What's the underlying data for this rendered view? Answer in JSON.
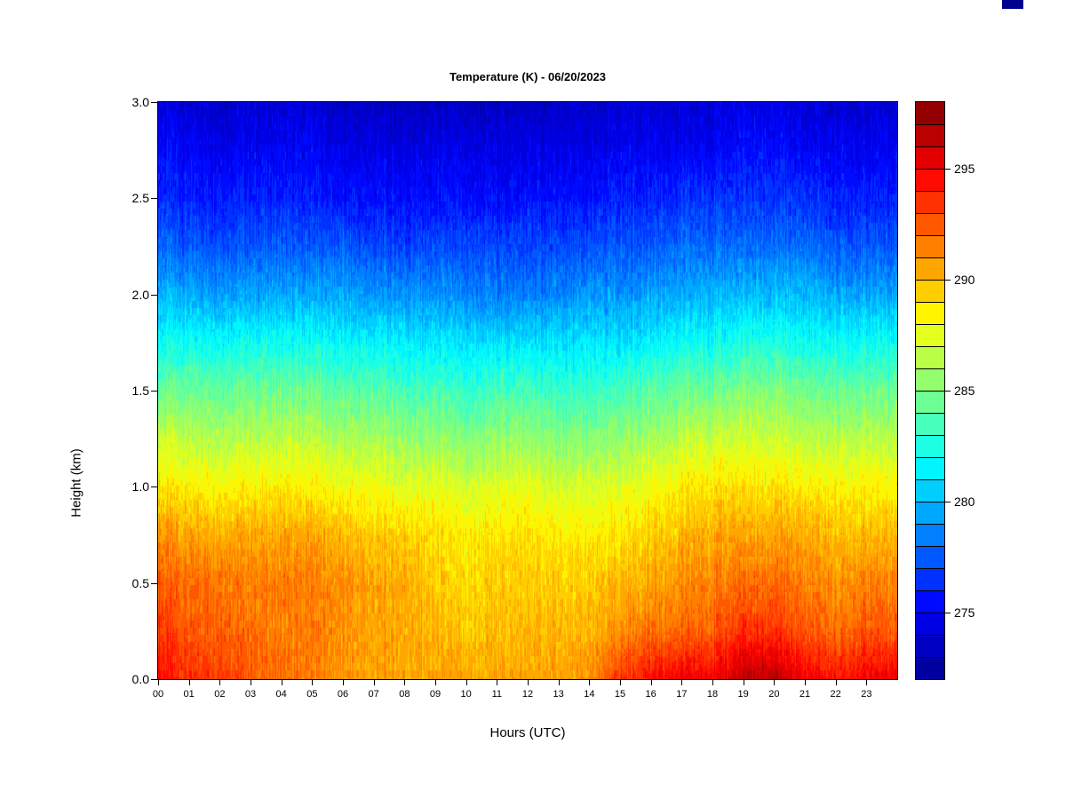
{
  "chart": {
    "title": "Temperature (K) - 06/20/2023",
    "xlabel": "Hours (UTC)",
    "ylabel": "Height (km)",
    "x_ticks": [
      "00",
      "01",
      "02",
      "03",
      "04",
      "05",
      "06",
      "07",
      "08",
      "09",
      "10",
      "11",
      "12",
      "13",
      "14",
      "15",
      "16",
      "17",
      "18",
      "19",
      "20",
      "21",
      "22",
      "23"
    ],
    "y_ticks": [
      "0.0",
      "0.5",
      "1.0",
      "1.5",
      "2.0",
      "2.5",
      "3.0"
    ],
    "colorbar_tick_labels": [
      "275",
      "280",
      "285",
      "290",
      "295"
    ]
  },
  "decorations": {
    "corner_mark_color": "#00008f"
  },
  "chart_data": {
    "type": "heatmap",
    "title": "Temperature (K) - 06/20/2023",
    "xlabel": "Hours (UTC)",
    "ylabel": "Height (km)",
    "x_hours": [
      0,
      1,
      2,
      3,
      4,
      5,
      6,
      7,
      8,
      9,
      10,
      11,
      12,
      13,
      14,
      15,
      16,
      17,
      18,
      19,
      20,
      21,
      22,
      23
    ],
    "y_heights_km": [
      0.0,
      0.25,
      0.5,
      0.75,
      1.0,
      1.25,
      1.5,
      1.75,
      2.0,
      2.25,
      2.5,
      2.75,
      3.0
    ],
    "y_range_km": [
      0.0,
      3.0
    ],
    "values_units": "K",
    "values_K_rows_by_height": [
      [
        294.5,
        293.5,
        293.5,
        292.5,
        292.0,
        291.5,
        291.0,
        290.5,
        290.5,
        290.5,
        290.5,
        290.5,
        290.5,
        290.5,
        291.0,
        293.5,
        294.5,
        295.0,
        295.0,
        296.5,
        296.5,
        295.0,
        294.5,
        295.0
      ],
      [
        293.5,
        292.5,
        292.5,
        292.0,
        291.5,
        291.5,
        291.0,
        290.5,
        290.5,
        290.0,
        289.5,
        290.0,
        290.0,
        290.0,
        290.0,
        291.0,
        292.0,
        292.0,
        292.5,
        293.5,
        293.5,
        292.5,
        292.0,
        292.5
      ],
      [
        292.5,
        292.0,
        292.0,
        291.5,
        291.5,
        291.5,
        291.0,
        290.5,
        290.5,
        289.5,
        289.0,
        289.5,
        289.5,
        289.5,
        289.5,
        290.0,
        290.5,
        291.0,
        291.5,
        292.0,
        292.0,
        291.5,
        291.0,
        291.5
      ],
      [
        291.0,
        290.5,
        290.5,
        290.5,
        290.5,
        290.5,
        290.0,
        289.5,
        289.5,
        289.0,
        288.5,
        289.0,
        289.0,
        288.5,
        288.5,
        289.0,
        289.5,
        290.0,
        290.5,
        290.5,
        290.5,
        290.5,
        290.0,
        290.0
      ],
      [
        289.0,
        288.5,
        288.5,
        288.5,
        288.5,
        288.5,
        288.0,
        288.0,
        287.5,
        287.5,
        287.0,
        287.5,
        287.5,
        287.0,
        287.0,
        287.5,
        288.0,
        288.5,
        289.0,
        289.0,
        289.0,
        288.5,
        288.5,
        288.5
      ],
      [
        287.0,
        286.5,
        286.5,
        286.5,
        286.5,
        286.5,
        286.0,
        286.0,
        285.5,
        285.5,
        285.0,
        285.5,
        285.5,
        285.0,
        285.0,
        285.5,
        286.0,
        286.5,
        287.0,
        287.0,
        287.0,
        286.5,
        286.5,
        286.5
      ],
      [
        284.5,
        284.5,
        284.5,
        284.5,
        284.5,
        284.5,
        284.0,
        284.0,
        283.5,
        283.5,
        283.0,
        283.5,
        283.5,
        283.0,
        283.0,
        283.5,
        284.0,
        284.5,
        284.5,
        285.0,
        285.0,
        284.5,
        284.5,
        284.5
      ],
      [
        282.0,
        282.0,
        282.0,
        282.0,
        282.0,
        282.0,
        281.5,
        281.5,
        281.5,
        281.0,
        281.0,
        281.0,
        281.0,
        281.0,
        281.0,
        281.0,
        281.5,
        282.0,
        282.0,
        282.5,
        282.5,
        282.0,
        282.0,
        282.0
      ],
      [
        280.0,
        279.5,
        279.5,
        279.5,
        279.5,
        279.5,
        279.5,
        279.0,
        279.0,
        279.0,
        278.5,
        278.5,
        278.5,
        278.5,
        279.0,
        279.0,
        279.5,
        279.5,
        280.0,
        280.0,
        280.0,
        280.0,
        279.5,
        279.5
      ],
      [
        278.0,
        277.5,
        277.5,
        277.5,
        277.5,
        277.5,
        277.5,
        277.0,
        277.0,
        277.0,
        277.0,
        277.0,
        277.0,
        277.0,
        277.0,
        277.5,
        277.5,
        278.0,
        278.0,
        278.0,
        278.0,
        278.0,
        277.5,
        277.5
      ],
      [
        276.5,
        276.0,
        276.0,
        276.0,
        276.0,
        276.0,
        275.5,
        275.5,
        275.5,
        275.5,
        275.5,
        275.5,
        275.5,
        275.5,
        275.5,
        276.0,
        276.0,
        276.5,
        276.5,
        276.5,
        276.5,
        276.5,
        276.0,
        276.0
      ],
      [
        275.5,
        275.0,
        275.0,
        275.0,
        275.0,
        275.0,
        274.5,
        274.5,
        274.5,
        274.5,
        274.5,
        274.5,
        274.5,
        274.5,
        274.5,
        275.0,
        275.0,
        275.0,
        275.0,
        275.5,
        275.5,
        275.0,
        275.0,
        275.0
      ],
      [
        274.5,
        274.0,
        274.0,
        274.0,
        274.0,
        274.0,
        273.5,
        273.5,
        273.5,
        273.5,
        273.5,
        273.5,
        273.5,
        273.5,
        273.5,
        274.0,
        274.0,
        274.0,
        274.0,
        274.5,
        274.5,
        274.0,
        274.0,
        274.0
      ]
    ],
    "value_range_K": [
      272,
      298
    ],
    "level_step_K": 1,
    "colorbar_labels": [
      275,
      280,
      285,
      290,
      295
    ],
    "colormap": "jet",
    "colormap_stops": [
      {
        "pos": 0.0,
        "color": "#00008F"
      },
      {
        "pos": 0.125,
        "color": "#0000FF"
      },
      {
        "pos": 0.375,
        "color": "#00FFFF"
      },
      {
        "pos": 0.625,
        "color": "#FFFF00"
      },
      {
        "pos": 0.875,
        "color": "#FF0000"
      },
      {
        "pos": 1.0,
        "color": "#800000"
      }
    ],
    "noise_amplitude_K": 1.0,
    "grid": false,
    "legend_position": "right"
  }
}
